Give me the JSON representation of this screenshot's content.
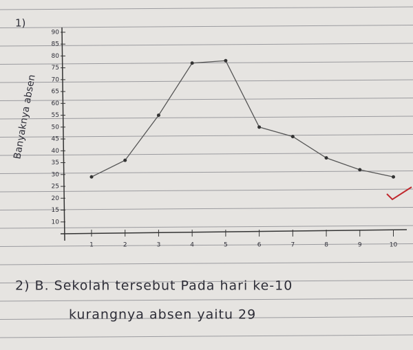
{
  "chart_data": {
    "type": "line",
    "title": "1)",
    "y_label": "Banyaknya absen",
    "x": [
      1,
      2,
      3,
      4,
      5,
      6,
      7,
      8,
      9,
      10
    ],
    "series": [
      {
        "color": "#555555",
        "values": [
          29,
          36,
          55,
          77,
          78,
          50,
          46,
          37,
          32,
          29
        ]
      }
    ],
    "xlim": [
      0.2,
      10.4
    ],
    "xticks": [
      1,
      2,
      3,
      4,
      5,
      6,
      7,
      8,
      9,
      10
    ],
    "ylim": [
      5,
      92
    ],
    "yticks": [
      10,
      15,
      20,
      25,
      30,
      35,
      40,
      45,
      50,
      55,
      60,
      65,
      70,
      75,
      80,
      85,
      90
    ],
    "grid": false
  },
  "notes": [
    "2) B. Sekolah tersebut Pada hari ke-10",
    "kurangnya absen yaitu 29"
  ]
}
